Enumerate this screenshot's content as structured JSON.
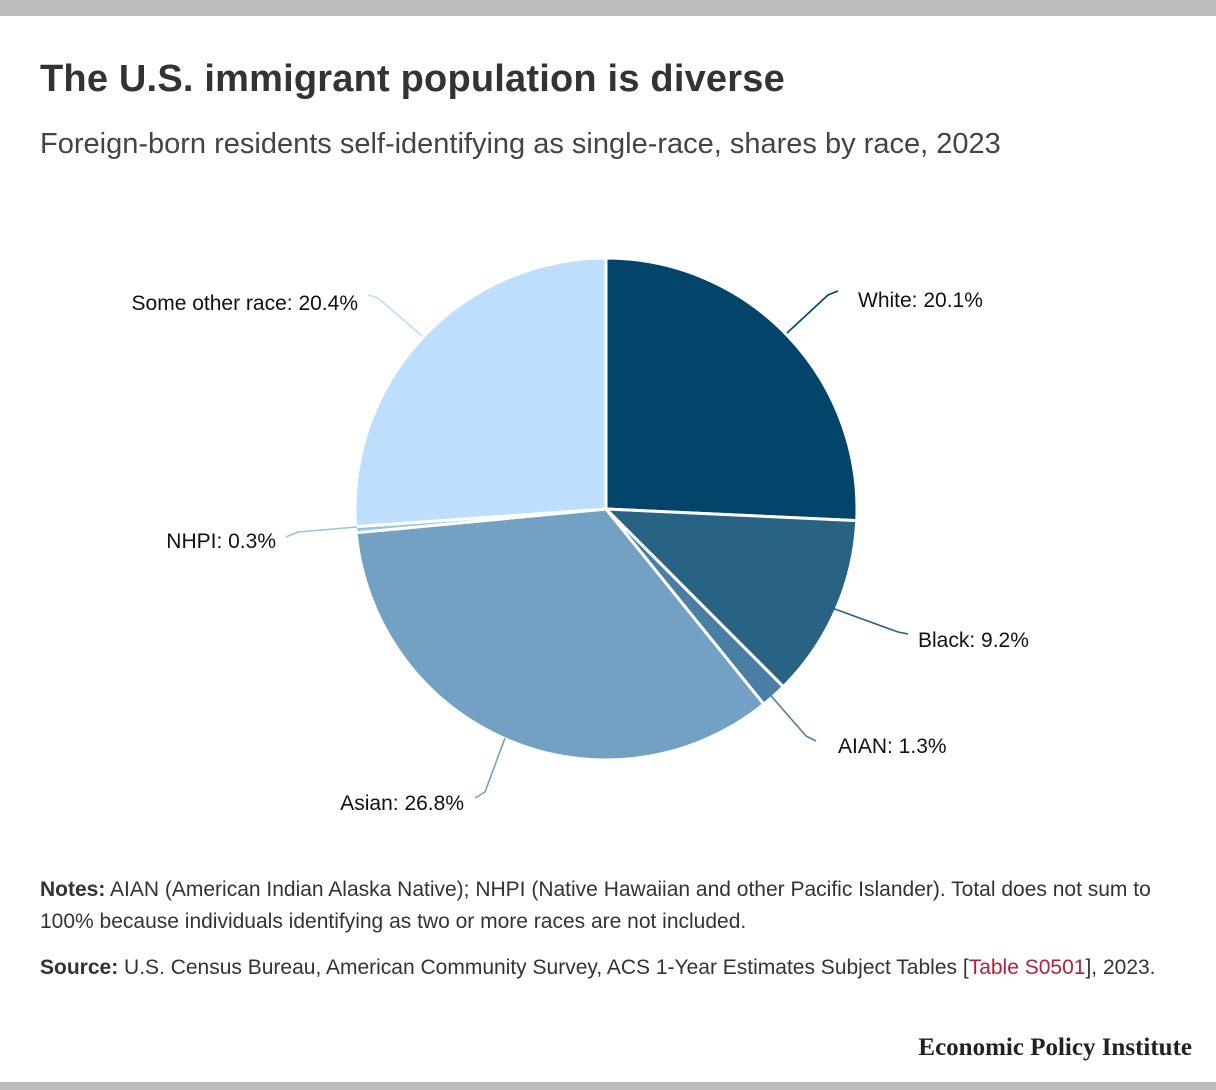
{
  "chart_data": {
    "type": "pie",
    "title": "The U.S. immigrant population is diverse",
    "subtitle": "Foreign-born residents self-identifying as single-race, shares by race, 2023",
    "slices": [
      {
        "name": "White",
        "value": 20.1,
        "label": "White: 20.1%",
        "color": "#02446a"
      },
      {
        "name": "Black",
        "value": 9.2,
        "label": "Black: 9.2%",
        "color": "#286384"
      },
      {
        "name": "AIAN",
        "value": 1.3,
        "label": "AIAN: 1.3%",
        "color": "#4a7fa5"
      },
      {
        "name": "Asian",
        "value": 26.8,
        "label": "Asian: 26.8%",
        "color": "#72a1c3"
      },
      {
        "name": "NHPI",
        "value": 0.3,
        "label": "NHPI: 0.3%",
        "color": "#9ac3e2"
      },
      {
        "name": "Some other race",
        "value": 20.4,
        "label": "Some other race: 20.4%",
        "color": "#bddffd"
      }
    ]
  },
  "notes": {
    "heading": "Notes:",
    "text": " AIAN (American Indian Alaska Native); NHPI (Native Hawaiian and other Pacific Islander). Total does not sum to 100% because individuals identifying as two or more races are not included."
  },
  "source": {
    "heading": "Source:",
    "text_before": " U.S. Census Bureau, American Community Survey, ACS 1-Year Estimates Subject Tables [",
    "link_text": "Table S0501",
    "text_after": "], 2023."
  },
  "footer": {
    "org": "Economic Policy Institute"
  }
}
